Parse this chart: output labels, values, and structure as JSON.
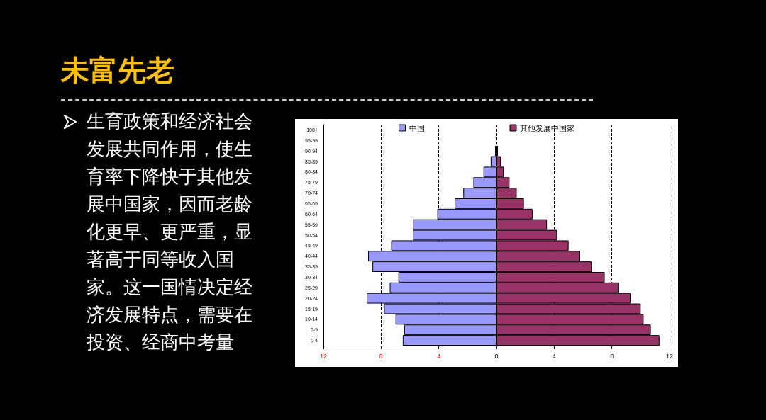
{
  "chart_data": {
    "type": "bar",
    "orientation": "horizontal",
    "title": "未富先老",
    "annotations": [
      "生育政策和经济社会发展共同作用，使生育率下降快于其他发展中国家，因而老龄化更早、更严重，显著高于同等收入国家。这一国情决定经济发展特点，需要在投资、经商中考量"
    ],
    "categories": [
      "100+",
      "95-99",
      "90-94",
      "85-89",
      "80-84",
      "75-79",
      "70-74",
      "65-69",
      "60-64",
      "55-59",
      "50-54",
      "45-49",
      "40-44",
      "35-39",
      "30-34",
      "25-29",
      "20-24",
      "15-19",
      "10-14",
      "5-9",
      "0-4"
    ],
    "series": [
      {
        "name": "中国",
        "color": "#9999ff",
        "values": [
          null,
          null,
          -0.1,
          -0.4,
          -0.9,
          -1.6,
          -2.3,
          -2.9,
          -4.1,
          -5.8,
          -5.8,
          -7.3,
          -8.9,
          -8.6,
          -6.8,
          -7.4,
          -9.0,
          -7.8,
          -7.0,
          -6.4,
          -6.5
        ]
      },
      {
        "name": "其他发展中国家",
        "color": "#993366",
        "values": [
          null,
          null,
          0.1,
          0.3,
          0.5,
          0.9,
          1.4,
          1.9,
          2.5,
          3.5,
          4.2,
          5.0,
          5.8,
          6.6,
          7.5,
          8.5,
          9.3,
          10.0,
          10.2,
          10.7,
          11.3
        ]
      }
    ],
    "xlim": [
      -12,
      12
    ],
    "xticks": [
      {
        "value": -12,
        "label": "12"
      },
      {
        "value": -8,
        "label": "8"
      },
      {
        "value": -4,
        "label": "4"
      },
      0,
      4,
      8,
      12
    ],
    "grid": "x",
    "legend": "top",
    "stacked": true
  }
}
